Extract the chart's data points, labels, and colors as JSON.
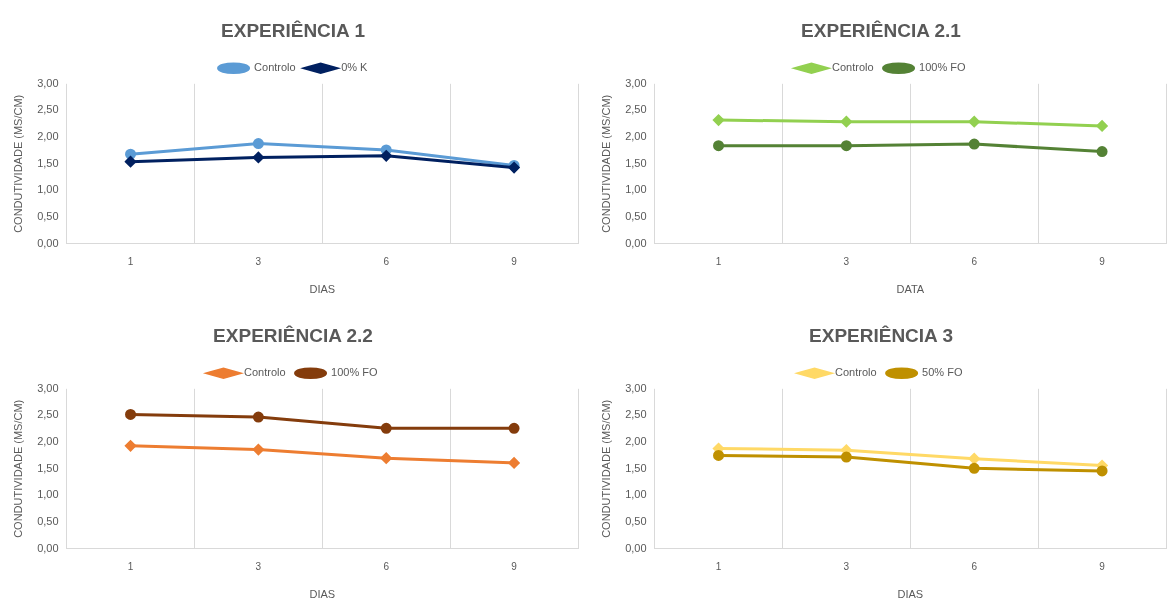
{
  "chart_data": [
    {
      "type": "line",
      "title": "EXPERIÊNCIA 1",
      "xlabel": "DIAS",
      "ylabel": "CONDUTIVIDADE (MS/CM)",
      "categories": [
        "1",
        "3",
        "6",
        "9"
      ],
      "ylim": [
        0,
        3
      ],
      "yticks": [
        {
          "value": 0,
          "label": "0,00"
        },
        {
          "value": 0.5,
          "label": "0,50"
        },
        {
          "value": 1,
          "label": "1,00"
        },
        {
          "value": 1.5,
          "label": "1,50"
        },
        {
          "value": 2,
          "label": "2,00"
        },
        {
          "value": 2.5,
          "label": "2,50"
        },
        {
          "value": 3,
          "label": "3,00"
        }
      ],
      "grid": "x",
      "legend": "top",
      "series": [
        {
          "name": "Controlo",
          "color": "#5b9bd5",
          "marker": "circle",
          "values": [
            1.68,
            1.88,
            1.76,
            1.47
          ]
        },
        {
          "name": "0% K",
          "color": "#002060",
          "marker": "diamond",
          "values": [
            1.54,
            1.62,
            1.65,
            1.43
          ]
        }
      ]
    },
    {
      "type": "line",
      "title": "EXPERIÊNCIA 2.1",
      "xlabel": "DATA",
      "ylabel": "CONDUTIVIDADE (MS/CM)",
      "categories": [
        "1",
        "3",
        "6",
        "9"
      ],
      "ylim": [
        0,
        3
      ],
      "yticks": [
        {
          "value": 0,
          "label": "0,00"
        },
        {
          "value": 0.5,
          "label": "0,50"
        },
        {
          "value": 1,
          "label": "1,00"
        },
        {
          "value": 1.5,
          "label": "1,50"
        },
        {
          "value": 2,
          "label": "2,00"
        },
        {
          "value": 2.5,
          "label": "2,50"
        },
        {
          "value": 3,
          "label": "3,00"
        }
      ],
      "grid": "x",
      "legend": "top",
      "series": [
        {
          "name": "Controlo",
          "color": "#92d050",
          "marker": "diamond",
          "values": [
            2.32,
            2.29,
            2.29,
            2.21
          ]
        },
        {
          "name": "100% FO",
          "color": "#548235",
          "marker": "circle",
          "values": [
            1.84,
            1.84,
            1.87,
            1.73
          ]
        }
      ]
    },
    {
      "type": "line",
      "title": "EXPERIÊNCIA 2.2",
      "xlabel": "DIAS",
      "ylabel": "CONDUTIVIDADE (MS/CM)",
      "categories": [
        "1",
        "3",
        "6",
        "9"
      ],
      "ylim": [
        0,
        3
      ],
      "yticks": [
        {
          "value": 0,
          "label": "0,00"
        },
        {
          "value": 0.5,
          "label": "0,50"
        },
        {
          "value": 1,
          "label": "1,00"
        },
        {
          "value": 1.5,
          "label": "1,50"
        },
        {
          "value": 2,
          "label": "2,00"
        },
        {
          "value": 2.5,
          "label": "2,50"
        },
        {
          "value": 3,
          "label": "3,00"
        }
      ],
      "grid": "x",
      "legend": "top",
      "series": [
        {
          "name": "Controlo",
          "color": "#ed7d31",
          "marker": "diamond",
          "values": [
            1.93,
            1.86,
            1.7,
            1.61
          ]
        },
        {
          "name": "100% FO",
          "color": "#843c0c",
          "marker": "circle",
          "values": [
            2.52,
            2.47,
            2.26,
            2.26
          ]
        }
      ]
    },
    {
      "type": "line",
      "title": "EXPERIÊNCIA 3",
      "xlabel": "DIAS",
      "ylabel": "CONDUTIVIDADE (MS/CM)",
      "categories": [
        "1",
        "3",
        "6",
        "9"
      ],
      "ylim": [
        0,
        3
      ],
      "yticks": [
        {
          "value": 0,
          "label": "0,00"
        },
        {
          "value": 0.5,
          "label": "0,50"
        },
        {
          "value": 1,
          "label": "1,00"
        },
        {
          "value": 1.5,
          "label": "1,50"
        },
        {
          "value": 2,
          "label": "2,00"
        },
        {
          "value": 2.5,
          "label": "2,50"
        },
        {
          "value": 3,
          "label": "3,00"
        }
      ],
      "grid": "x",
      "legend": "top",
      "series": [
        {
          "name": "Controlo",
          "color": "#ffd966",
          "marker": "diamond",
          "values": [
            1.88,
            1.85,
            1.69,
            1.56
          ]
        },
        {
          "name": "50% FO",
          "color": "#bf9000",
          "marker": "circle",
          "values": [
            1.75,
            1.72,
            1.51,
            1.46
          ]
        }
      ]
    }
  ]
}
